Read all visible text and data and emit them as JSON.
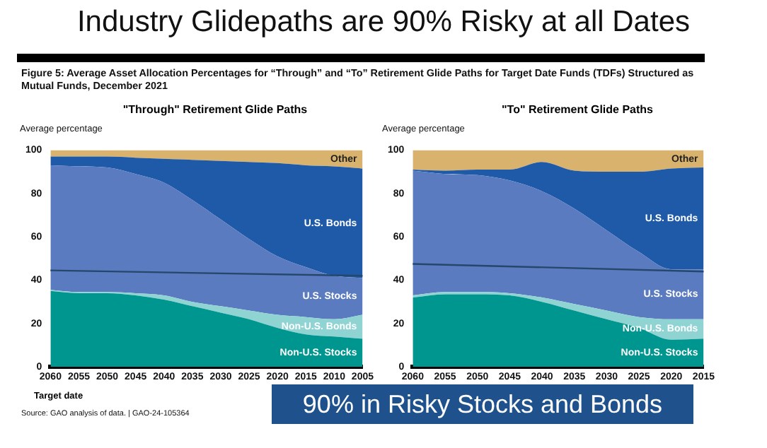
{
  "chart_data": [
    {
      "type": "area",
      "title": "\"Through\" Retirement Glide Paths",
      "ylabel": "Average percentage",
      "xlabel": "Target date",
      "stacked": true,
      "annotations": [
        "Industry Glidepaths are 90% Risky at all Dates",
        "Figure 5: Average Asset Allocation Percentages for “Through” and “To” Retirement Glide Paths for Target Date Funds (TDFs) Structured as Mutual Funds, December 2021",
        "Source: GAO analysis of data. | GAO-24-105364"
      ],
      "categories": [
        "2060",
        "2055",
        "2050",
        "2045",
        "2040",
        "2035",
        "2030",
        "2025",
        "2020",
        "2015",
        "2010",
        "2005"
      ],
      "ylim": [
        0,
        100
      ],
      "yticks": [
        0,
        20,
        40,
        60,
        80,
        100
      ],
      "grid": false,
      "legend": false,
      "series": [
        {
          "name": "Non-U.S. Stocks",
          "color": "#009690",
          "values": [
            35,
            34,
            34,
            33,
            31,
            28,
            25,
            22,
            18,
            15,
            14,
            13
          ]
        },
        {
          "name": "Non-U.S. Bonds",
          "color": "#8fd3d3",
          "values": [
            0.5,
            0.5,
            0.5,
            1,
            2,
            2,
            3,
            4,
            6,
            8,
            8,
            11
          ]
        },
        {
          "name": "U.S. Stocks",
          "color": "#5b7bc0",
          "values": [
            57.5,
            58,
            57.5,
            55,
            52,
            47,
            40,
            33,
            27,
            23,
            20,
            17
          ]
        },
        {
          "name": "U.S. Bonds",
          "color": "#1f5aa8",
          "values": [
            4,
            4.5,
            5,
            7.5,
            11,
            18.5,
            27,
            35.5,
            43,
            47,
            50.5,
            50.5
          ]
        },
        {
          "name": "Other",
          "color": "#d9b36e",
          "values": [
            3,
            3,
            3,
            3.5,
            4,
            4.5,
            5,
            5.5,
            6,
            7,
            7.5,
            8.5
          ]
        },
        {
          "type": "line",
          "color": "#24476b",
          "values": [
            44.5,
            null,
            null,
            null,
            null,
            null,
            null,
            null,
            null,
            null,
            null,
            42
          ]
        }
      ]
    },
    {
      "type": "area",
      "title": "\"To\" Retirement Glide Paths",
      "ylabel": "Average percentage",
      "stacked": true,
      "annotations": [
        "90% in Risky Stocks and Bonds"
      ],
      "categories": [
        "2060",
        "2055",
        "2050",
        "2045",
        "2040",
        "2035",
        "2030",
        "2025",
        "2020",
        "2015"
      ],
      "ylim": [
        0,
        100
      ],
      "yticks": [
        0,
        20,
        40,
        60,
        80,
        100
      ],
      "grid": false,
      "legend": false,
      "series": [
        {
          "name": "Non-U.S. Stocks",
          "color": "#009690",
          "values": [
            32,
            33.5,
            33.5,
            33,
            30,
            26,
            22,
            18,
            12.5,
            13
          ]
        },
        {
          "name": "Non-U.S. Bonds",
          "color": "#8fd3d3",
          "values": [
            1,
            1,
            1,
            1,
            2,
            3,
            4,
            5,
            9.5,
            9
          ]
        },
        {
          "name": "U.S. Stocks",
          "color": "#5b7bc0",
          "values": [
            57.5,
            54.5,
            54,
            52,
            49,
            44,
            37,
            30,
            23,
            23
          ]
        },
        {
          "name": "U.S. Bonds",
          "color": "#1f5aa8",
          "values": [
            0.5,
            1.5,
            2.5,
            5,
            13.5,
            17.5,
            27,
            37,
            46.5,
            47
          ]
        },
        {
          "name": "Other",
          "color": "#d9b36e",
          "values": [
            9,
            9.5,
            9,
            9,
            5.5,
            9.5,
            10,
            10,
            8.5,
            8
          ]
        },
        {
          "type": "line",
          "color": "#24476b",
          "values": [
            47.5,
            null,
            null,
            null,
            null,
            null,
            null,
            null,
            null,
            44
          ]
        }
      ]
    }
  ]
}
